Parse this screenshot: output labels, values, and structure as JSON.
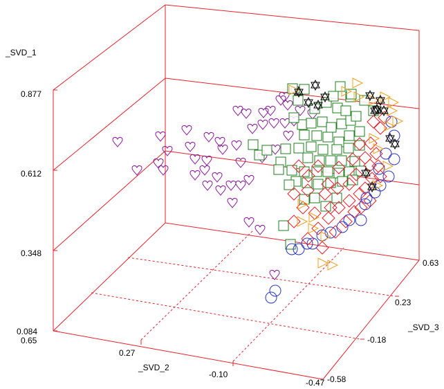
{
  "chart_data": {
    "type": "scatter3d",
    "axes": {
      "vertical": {
        "label": "_SVD_1",
        "ticks": [
          "0.084",
          "0.348",
          "0.612",
          "0.877"
        ],
        "range": [
          0.084,
          1.0
        ]
      },
      "left_floor": {
        "label": "_SVD_2",
        "ticks": [
          "0.65",
          "0.27",
          "-0.10",
          "-0.47"
        ],
        "range": [
          0.65,
          -0.47
        ]
      },
      "right_floor": {
        "label": "_SVD_3",
        "ticks": [
          "-0.58",
          "-0.18",
          "0.23",
          "0.63"
        ],
        "range": [
          -0.58,
          0.63
        ]
      }
    },
    "colors": {
      "axis": "#e8202a",
      "heart": "#8b1a9b",
      "square": "#1e7e1e",
      "diamond": "#e8202a",
      "circle": "#2a35c8",
      "triangle": "#f0a020",
      "star": "#000000"
    },
    "series": [
      {
        "marker": "heart",
        "color": "#8b1a9b",
        "points": [
          [
            170,
            205
          ],
          [
            198,
            246
          ],
          [
            232,
            197
          ],
          [
            242,
            218
          ],
          [
            229,
            236
          ],
          [
            236,
            246
          ],
          [
            270,
            188
          ],
          [
            275,
            212
          ],
          [
            302,
            198
          ],
          [
            318,
            205
          ],
          [
            282,
            230
          ],
          [
            299,
            232
          ],
          [
            322,
            216
          ],
          [
            342,
            210
          ],
          [
            348,
            235
          ],
          [
            365,
            186
          ],
          [
            380,
            180
          ],
          [
            396,
            178
          ],
          [
            412,
            178
          ],
          [
            434,
            160
          ],
          [
            452,
            165
          ],
          [
            391,
            160
          ],
          [
            406,
            145
          ],
          [
            411,
            140
          ],
          [
            428,
            132
          ],
          [
            344,
            160
          ],
          [
            334,
            268
          ],
          [
            348,
            268
          ],
          [
            360,
            260
          ],
          [
            314,
            256
          ],
          [
            336,
            293
          ],
          [
            360,
            321
          ],
          [
            376,
            332
          ],
          [
            282,
            253
          ],
          [
            300,
            268
          ],
          [
            319,
            275
          ],
          [
            296,
            246
          ],
          [
            379,
            228
          ],
          [
            397,
            397
          ],
          [
            416,
            152
          ],
          [
            425,
            175
          ],
          [
            356,
            164
          ],
          [
            381,
            163
          ],
          [
            398,
            216
          ],
          [
            417,
            196
          ]
        ]
      },
      {
        "marker": "square",
        "color": "#1e7e1e",
        "points": [
          [
            437,
            180
          ],
          [
            450,
            178
          ],
          [
            466,
            176
          ],
          [
            479,
            184
          ],
          [
            494,
            179
          ],
          [
            507,
            174
          ],
          [
            425,
            170
          ],
          [
            440,
            195
          ],
          [
            458,
            196
          ],
          [
            474,
            198
          ],
          [
            490,
            205
          ],
          [
            505,
            196
          ],
          [
            520,
            190
          ],
          [
            432,
            214
          ],
          [
            450,
            212
          ],
          [
            467,
            216
          ],
          [
            487,
            216
          ],
          [
            504,
            214
          ],
          [
            520,
            210
          ],
          [
            445,
            228
          ],
          [
            462,
            232
          ],
          [
            478,
            232
          ],
          [
            494,
            232
          ],
          [
            513,
            233
          ],
          [
            406,
            234
          ],
          [
            422,
            246
          ],
          [
            440,
            248
          ],
          [
            458,
            248
          ],
          [
            474,
            248
          ],
          [
            490,
            250
          ],
          [
            505,
            248
          ],
          [
            522,
            247
          ],
          [
            428,
            262
          ],
          [
            444,
            264
          ],
          [
            460,
            266
          ],
          [
            478,
            264
          ],
          [
            495,
            262
          ],
          [
            510,
            260
          ],
          [
            413,
            215
          ],
          [
            403,
            245
          ],
          [
            418,
            267
          ],
          [
            440,
            288
          ],
          [
            410,
            326
          ],
          [
            420,
            353
          ],
          [
            455,
            286
          ],
          [
            471,
            298
          ],
          [
            487,
            286
          ],
          [
            507,
            140
          ],
          [
            527,
            145
          ],
          [
            431,
            145
          ],
          [
            455,
            157
          ],
          [
            472,
            148
          ],
          [
            488,
            156
          ],
          [
            500,
            160
          ],
          [
            515,
            168
          ],
          [
            540,
            160
          ],
          [
            375,
            224
          ],
          [
            386,
            217
          ],
          [
            366,
            209
          ],
          [
            492,
            125
          ],
          [
            508,
            136
          ],
          [
            423,
            128
          ],
          [
            440,
            129
          ],
          [
            482,
            139
          ]
        ]
      },
      {
        "marker": "diamond",
        "color": "#e8202a",
        "points": [
          [
            547,
            240
          ],
          [
            538,
            258
          ],
          [
            528,
            272
          ],
          [
            515,
            252
          ],
          [
            505,
            266
          ],
          [
            520,
            280
          ],
          [
            535,
            290
          ],
          [
            522,
            300
          ],
          [
            505,
            290
          ],
          [
            490,
            300
          ],
          [
            475,
            315
          ],
          [
            460,
            330
          ],
          [
            445,
            345
          ],
          [
            466,
            358
          ],
          [
            485,
            335
          ],
          [
            500,
            320
          ],
          [
            512,
            306
          ],
          [
            425,
            320
          ],
          [
            438,
            300
          ],
          [
            455,
            308
          ],
          [
            470,
            280
          ],
          [
            488,
            272
          ],
          [
            510,
            230
          ],
          [
            528,
            228
          ],
          [
            544,
            222
          ],
          [
            536,
            207
          ],
          [
            520,
            208
          ],
          [
            550,
            185
          ],
          [
            556,
            170
          ],
          [
            540,
            176
          ],
          [
            432,
            240
          ],
          [
            446,
            254
          ],
          [
            460,
            240
          ],
          [
            474,
            266
          ],
          [
            490,
            242
          ],
          [
            425,
            280
          ],
          [
            445,
            275
          ],
          [
            478,
            300
          ],
          [
            535,
            239
          ],
          [
            550,
            255
          ]
        ]
      },
      {
        "marker": "circle",
        "color": "#2a35c8",
        "points": [
          [
            562,
            255
          ],
          [
            550,
            268
          ],
          [
            542,
            278
          ],
          [
            528,
            295
          ],
          [
            522,
            318
          ],
          [
            505,
            318
          ],
          [
            495,
            328
          ],
          [
            478,
            336
          ],
          [
            466,
            340
          ],
          [
            452,
            352
          ],
          [
            432,
            360
          ],
          [
            444,
            352
          ],
          [
            422,
            360
          ],
          [
            398,
            420
          ],
          [
            392,
            430
          ],
          [
            566,
            176
          ],
          [
            570,
            196
          ],
          [
            558,
            222
          ],
          [
            570,
            230
          ],
          [
            548,
            244
          ],
          [
            530,
            286
          ]
        ]
      },
      {
        "marker": "triangle",
        "color": "#f0a020",
        "points": [
          [
            540,
            145
          ],
          [
            556,
            140
          ],
          [
            568,
            148
          ],
          [
            516,
            120
          ],
          [
            500,
            132
          ],
          [
            518,
            140
          ],
          [
            566,
            160
          ],
          [
            574,
            175
          ],
          [
            562,
            182
          ],
          [
            436,
            320
          ],
          [
            452,
            330
          ],
          [
            470,
            342
          ],
          [
            453,
            314
          ],
          [
            437,
            295
          ],
          [
            466,
            380
          ],
          [
            480,
            383
          ],
          [
            540,
            200
          ],
          [
            546,
            215
          ],
          [
            545,
            268
          ],
          [
            560,
            240
          ],
          [
            424,
            130
          ]
        ]
      },
      {
        "marker": "star",
        "color": "#000000",
        "points": [
          [
            432,
            133
          ],
          [
            446,
            148
          ],
          [
            460,
            152
          ],
          [
            456,
            123
          ],
          [
            470,
            140
          ],
          [
            550,
            145
          ],
          [
            542,
            160
          ],
          [
            555,
            160
          ],
          [
            564,
            200
          ],
          [
            571,
            208
          ],
          [
            538,
            270
          ],
          [
            529,
            250
          ],
          [
            545,
            158
          ],
          [
            535,
            138
          ]
        ]
      }
    ]
  }
}
